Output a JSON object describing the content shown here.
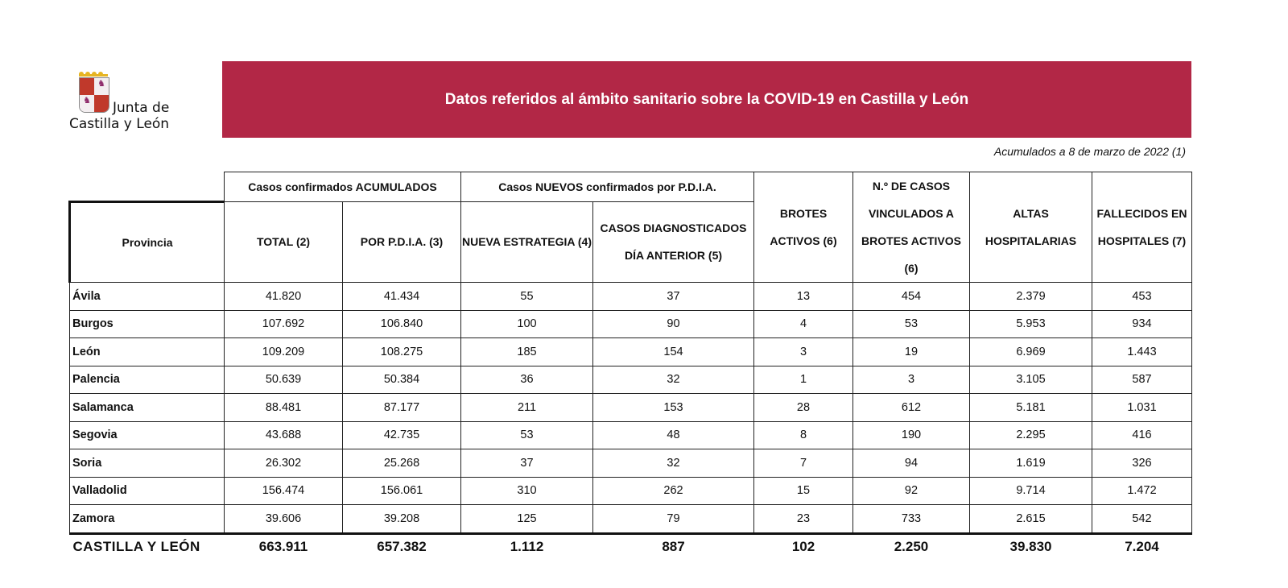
{
  "logo": {
    "line1": "Junta de",
    "line2": "Castilla y León"
  },
  "title": "Datos referidos al ámbito sanitario sobre la COVID-19 en Castilla y León",
  "subtitle": "Acumulados a 8 de marzo de 2022 (1)",
  "headers": {
    "group_acum": "Casos confirmados ACUMULADOS",
    "group_nuevos": "Casos NUEVOS confirmados por P.D.I.A.",
    "provincia": "Provincia",
    "total": "TOTAL (2)",
    "por_pdia": "POR P.D.I.A. (3)",
    "nueva": "NUEVA ESTRATEGIA (4)",
    "casos_diag": "CASOS DIAGNOSTICADOS DÍA ANTERIOR (5)",
    "brotes": "BROTES ACTIVOS (6)",
    "vinculados": "N.º DE CASOS VINCULADOS A BROTES ACTIVOS (6)",
    "altas": "ALTAS HOSPITALARIAS",
    "fallecidos": "FALLECIDOS EN HOSPITALES (7)"
  },
  "rows": [
    [
      "Ávila",
      "41.820",
      "41.434",
      "55",
      "37",
      "13",
      "454",
      "2.379",
      "453"
    ],
    [
      "Burgos",
      "107.692",
      "106.840",
      "100",
      "90",
      "4",
      "53",
      "5.953",
      "934"
    ],
    [
      "León",
      "109.209",
      "108.275",
      "185",
      "154",
      "3",
      "19",
      "6.969",
      "1.443"
    ],
    [
      "Palencia",
      "50.639",
      "50.384",
      "36",
      "32",
      "1",
      "3",
      "3.105",
      "587"
    ],
    [
      "Salamanca",
      "88.481",
      "87.177",
      "211",
      "153",
      "28",
      "612",
      "5.181",
      "1.031"
    ],
    [
      "Segovia",
      "43.688",
      "42.735",
      "53",
      "48",
      "8",
      "190",
      "2.295",
      "416"
    ],
    [
      "Soria",
      "26.302",
      "25.268",
      "37",
      "32",
      "7",
      "94",
      "1.619",
      "326"
    ],
    [
      "Valladolid",
      "156.474",
      "156.061",
      "310",
      "262",
      "15",
      "92",
      "9.714",
      "1.472"
    ],
    [
      "Zamora",
      "39.606",
      "39.208",
      "125",
      "79",
      "23",
      "733",
      "2.615",
      "542"
    ]
  ],
  "total": [
    "CASTILLA Y LEÓN",
    "663.911",
    "657.382",
    "1.112",
    "887",
    "102",
    "2.250",
    "39.830",
    "7.204"
  ],
  "colors": {
    "banner": "#b22746"
  }
}
